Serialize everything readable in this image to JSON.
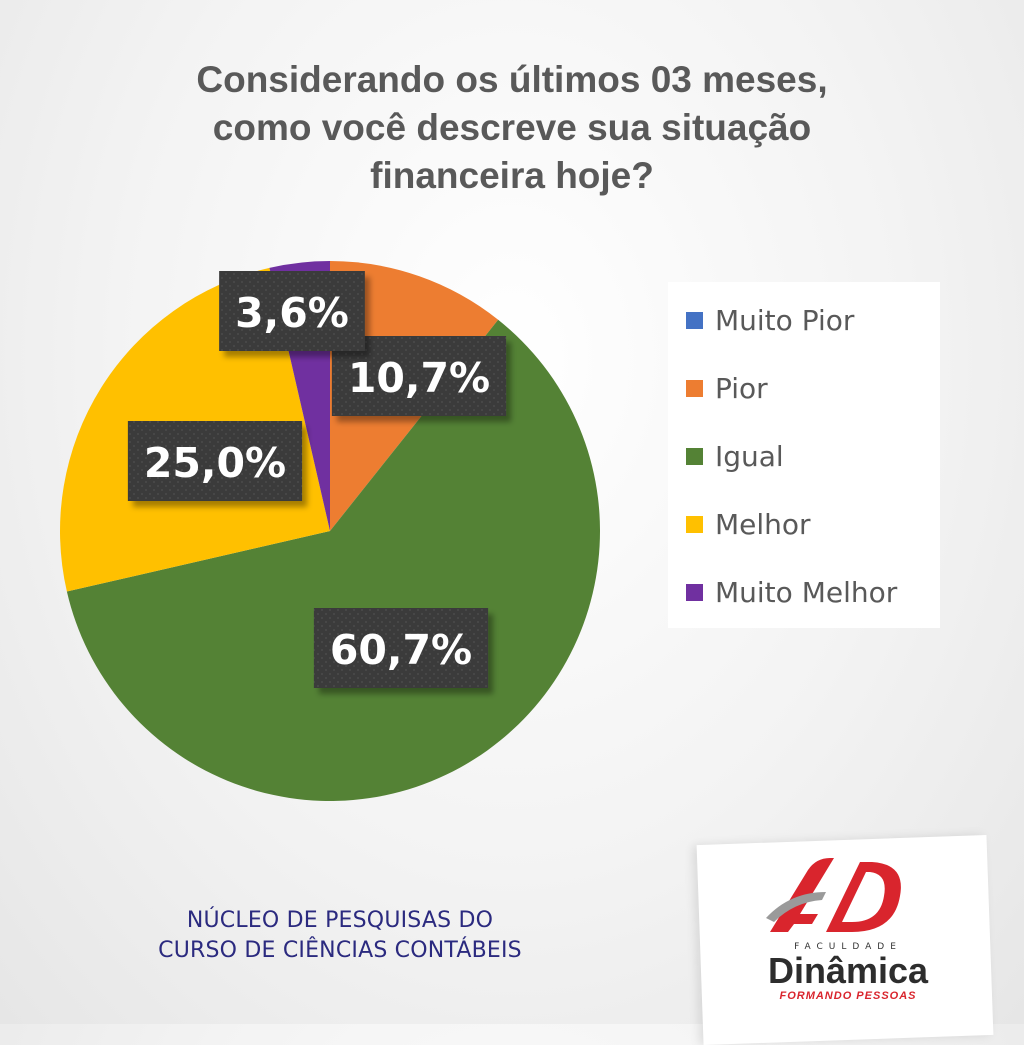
{
  "title_lines": [
    "Considerando os últimos 03 meses,",
    "como você descreve sua situação",
    "financeira hoje?"
  ],
  "chart_data": {
    "type": "pie",
    "title": "Considerando os últimos 03 meses, como você descreve sua situação financeira hoje?",
    "legend_position": "right",
    "start_angle_deg": 0,
    "direction": "clockwise",
    "slices": [
      {
        "label": "Muito Pior",
        "value": 0.0,
        "color": "#4472C4",
        "data_label": ""
      },
      {
        "label": "Pior",
        "value": 10.7,
        "color": "#ED7D31",
        "data_label": "10,7%"
      },
      {
        "label": "Igual",
        "value": 60.7,
        "color": "#548235",
        "data_label": "60,7%"
      },
      {
        "label": "Melhor",
        "value": 25.0,
        "color": "#FFC000",
        "data_label": "25,0%"
      },
      {
        "label": "Muito Melhor",
        "value": 3.6,
        "color": "#7030A0",
        "data_label": "3,6%"
      }
    ]
  },
  "footer_lines": [
    "NÚCLEO DE PESQUISAS DO",
    "CURSO DE CIÊNCIAS CONTÁBEIS"
  ],
  "logo": {
    "subtitle": "FACULDADE",
    "name": "Dinâmica",
    "tagline": "FORMANDO PESSOAS",
    "brand_color": "#D9252D"
  }
}
